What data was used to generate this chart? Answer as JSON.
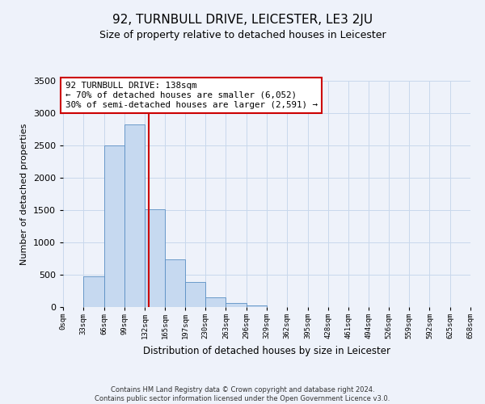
{
  "title": "92, TURNBULL DRIVE, LEICESTER, LE3 2JU",
  "subtitle": "Size of property relative to detached houses in Leicester",
  "xlabel": "Distribution of detached houses by size in Leicester",
  "ylabel": "Number of detached properties",
  "bar_heights": [
    0,
    470,
    2500,
    2820,
    1510,
    740,
    390,
    145,
    65,
    30,
    0,
    0,
    0,
    0,
    0,
    0,
    0,
    0,
    0,
    0
  ],
  "bin_edges": [
    0,
    33,
    66,
    99,
    132,
    165,
    197,
    230,
    263,
    296,
    329,
    362,
    395,
    428,
    461,
    494,
    526,
    559,
    592,
    625,
    658
  ],
  "tick_labels": [
    "0sqm",
    "33sqm",
    "66sqm",
    "99sqm",
    "132sqm",
    "165sqm",
    "197sqm",
    "230sqm",
    "263sqm",
    "296sqm",
    "329sqm",
    "362sqm",
    "395sqm",
    "428sqm",
    "461sqm",
    "494sqm",
    "526sqm",
    "559sqm",
    "592sqm",
    "625sqm",
    "658sqm"
  ],
  "bar_color": "#c6d9f0",
  "bar_edge_color": "#5a8fc3",
  "grid_color": "#c8d8ec",
  "property_line_x": 138,
  "property_line_color": "#cc0000",
  "ylim": [
    0,
    3500
  ],
  "yticks": [
    0,
    500,
    1000,
    1500,
    2000,
    2500,
    3000,
    3500
  ],
  "annotation_title": "92 TURNBULL DRIVE: 138sqm",
  "annotation_line1": "← 70% of detached houses are smaller (6,052)",
  "annotation_line2": "30% of semi-detached houses are larger (2,591) →",
  "annotation_box_color": "#ffffff",
  "annotation_box_edge": "#cc0000",
  "footnote1": "Contains HM Land Registry data © Crown copyright and database right 2024.",
  "footnote2": "Contains public sector information licensed under the Open Government Licence v3.0.",
  "background_color": "#eef2fa",
  "title_fontsize": 11,
  "subtitle_fontsize": 9
}
